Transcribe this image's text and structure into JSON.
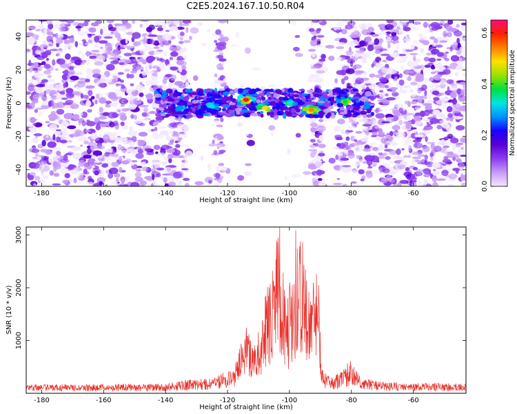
{
  "title": "C2E5.2024.167.10.50.R04",
  "colors": {
    "snr_line": "#e8302a",
    "colormap": [
      "#f2e8ff",
      "#c79af7",
      "#8c3df0",
      "#5a00d6",
      "#1a00ff",
      "#0090ff",
      "#00e5e0",
      "#00e040",
      "#9ae000",
      "#ffe000",
      "#ff8000",
      "#ff2000",
      "#ff0a7a"
    ]
  },
  "chart_data": [
    {
      "type": "heatmap",
      "name": "spectrogram",
      "xlabel": "Height of straight line (km)",
      "ylabel": "Frequency (Hz)",
      "xlim": [
        -185,
        -43
      ],
      "ylim": [
        -50,
        50
      ],
      "x_ticks": [
        -180,
        -160,
        -140,
        -120,
        -100,
        -80,
        -60
      ],
      "y_ticks": [
        -40,
        -20,
        0,
        20,
        40
      ],
      "colorbar": {
        "label": "Normalized spectral amplitude",
        "range": [
          0.0,
          0.65
        ],
        "ticks": [
          0.0,
          0.2,
          0.4,
          0.6
        ]
      },
      "low_signal_regions_km": [
        [
          -133,
          -124
        ],
        [
          -121,
          -93
        ],
        [
          -89,
          -85
        ]
      ],
      "signal_band": {
        "x_range_km": [
          -143,
          -73
        ],
        "frequency_center_hz": 0,
        "frequency_halfwidth_hz": 8,
        "peak_points": [
          {
            "x": -114,
            "y": 2,
            "value": 0.6
          },
          {
            "x": -108,
            "y": -3,
            "value": 0.5
          },
          {
            "x": -93,
            "y": -4,
            "value": 0.55
          },
          {
            "x": -82,
            "y": 1,
            "value": 0.4
          },
          {
            "x": -100,
            "y": 0,
            "value": 0.35
          },
          {
            "x": -125,
            "y": -2,
            "value": 0.3
          },
          {
            "x": -135,
            "y": -3,
            "value": 0.25
          }
        ]
      }
    },
    {
      "type": "line",
      "name": "snr",
      "xlabel": "Height of straight line (km)",
      "ylabel": "SNR (10 * v/v)",
      "xlim": [
        -185,
        -43
      ],
      "ylim": [
        0,
        3150
      ],
      "x_ticks": [
        -180,
        -160,
        -140,
        -120,
        -100,
        -80,
        -60
      ],
      "y_ticks": [
        1000,
        2000,
        3000
      ],
      "baseline_level": 150,
      "profile_points": [
        {
          "x": -185,
          "y": 150
        },
        {
          "x": -140,
          "y": 160
        },
        {
          "x": -132,
          "y": 230
        },
        {
          "x": -125,
          "y": 260
        },
        {
          "x": -118,
          "y": 420
        },
        {
          "x": -114,
          "y": 1150
        },
        {
          "x": -111,
          "y": 800
        },
        {
          "x": -108,
          "y": 1600
        },
        {
          "x": -106,
          "y": 1950
        },
        {
          "x": -103,
          "y": 2950
        },
        {
          "x": -101,
          "y": 1400
        },
        {
          "x": -99,
          "y": 2200
        },
        {
          "x": -97,
          "y": 3150
        },
        {
          "x": -95,
          "y": 2300
        },
        {
          "x": -93,
          "y": 1800
        },
        {
          "x": -91,
          "y": 2400
        },
        {
          "x": -89.5,
          "y": 400
        },
        {
          "x": -86,
          "y": 250
        },
        {
          "x": -80,
          "y": 580
        },
        {
          "x": -77,
          "y": 260
        },
        {
          "x": -70,
          "y": 190
        },
        {
          "x": -43,
          "y": 160
        }
      ]
    }
  ]
}
